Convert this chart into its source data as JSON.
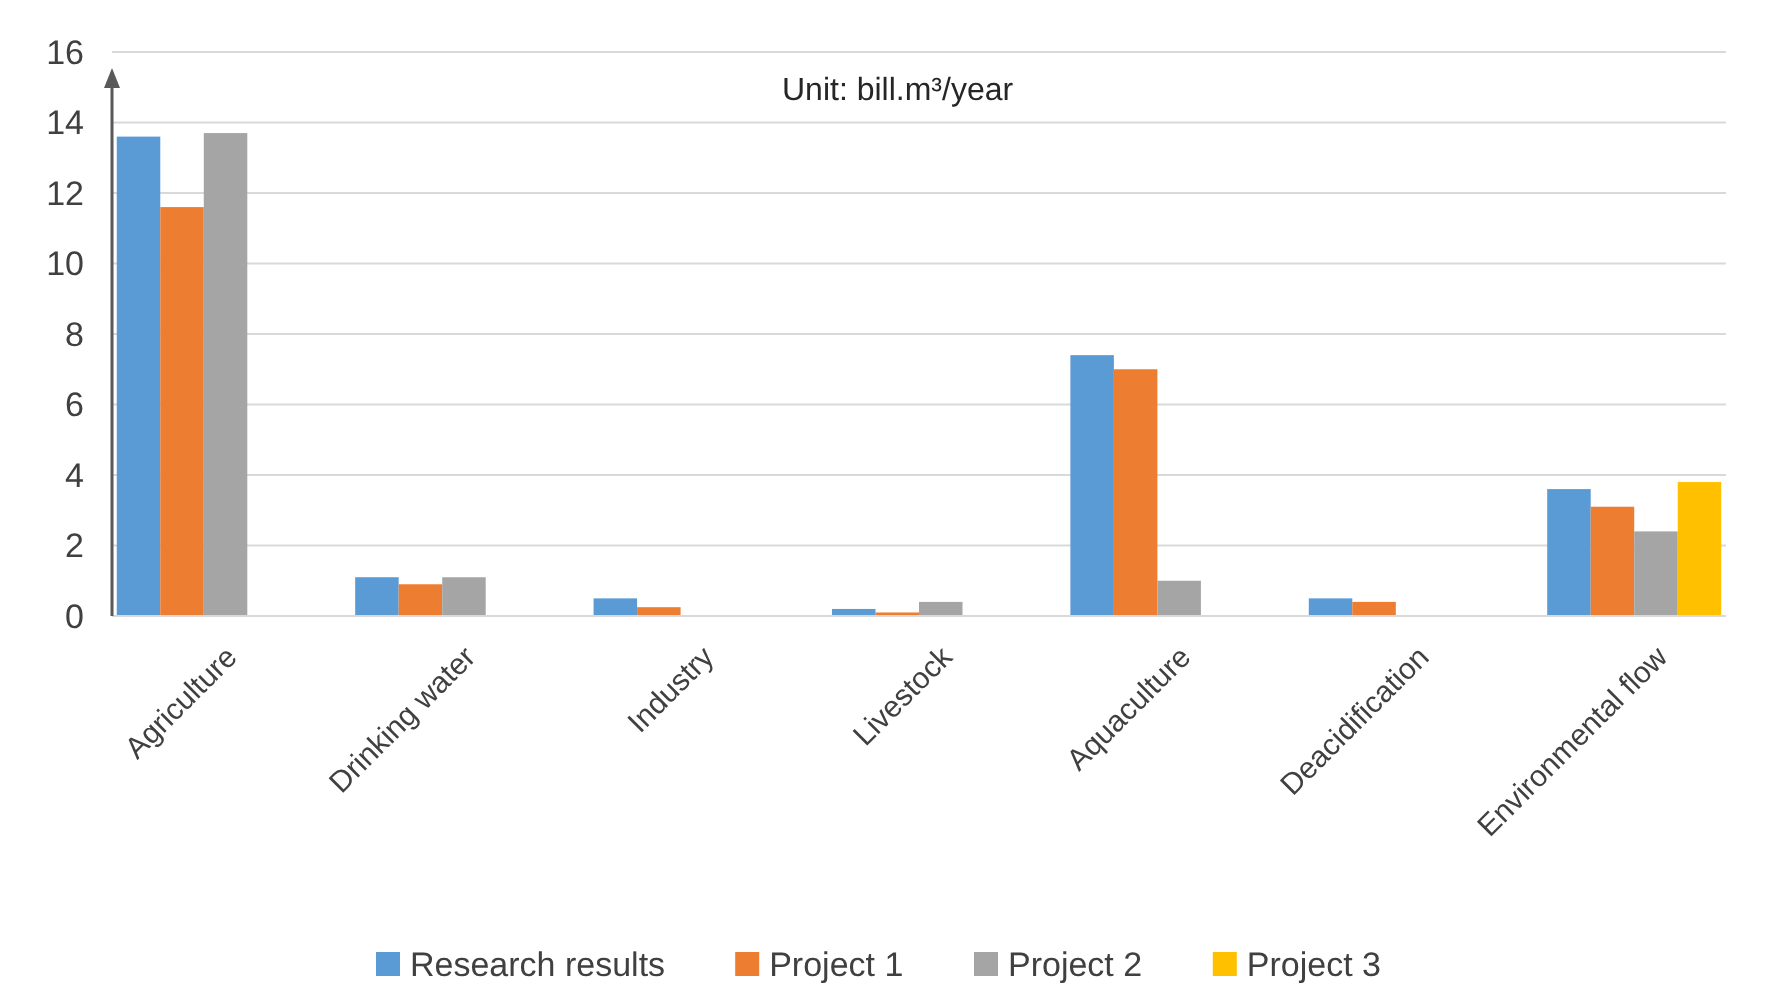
{
  "chart_data": {
    "type": "bar",
    "categories": [
      "Agriculture",
      "Drinking water",
      "Industry",
      "Livestock",
      "Aquaculture",
      "Deacidification",
      "Environmental flow"
    ],
    "series": [
      {
        "name": "Research results",
        "color": "#5b9bd5",
        "values": [
          13.6,
          1.1,
          0.5,
          0.2,
          7.4,
          0.5,
          3.6
        ]
      },
      {
        "name": "Project 1",
        "color": "#ed7d31",
        "values": [
          11.6,
          0.9,
          0.25,
          0.1,
          7.0,
          0.4,
          3.1
        ]
      },
      {
        "name": "Project 2",
        "color": "#a5a5a5",
        "values": [
          13.7,
          1.1,
          null,
          0.4,
          1.0,
          null,
          2.4
        ]
      },
      {
        "name": "Project 3",
        "color": "#ffc000",
        "values": [
          null,
          null,
          null,
          null,
          null,
          null,
          3.8
        ]
      }
    ],
    "ylim": [
      0,
      16
    ],
    "yticks": [
      0,
      2,
      4,
      6,
      8,
      10,
      12,
      14,
      16
    ],
    "grid": "y",
    "legend": "bottom",
    "annotations": [
      "Unit: bill.m³/year"
    ]
  }
}
